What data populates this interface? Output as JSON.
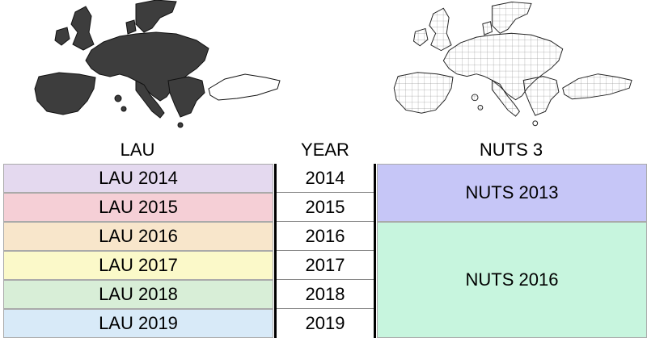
{
  "headers": {
    "lau": "LAU",
    "year": "YEAR",
    "nuts": "NUTS 3"
  },
  "lau_rows": [
    {
      "label": "LAU 2014",
      "color": "#e4d9ef"
    },
    {
      "label": "LAU 2015",
      "color": "#f5cfd6"
    },
    {
      "label": "LAU 2016",
      "color": "#f8e6cb"
    },
    {
      "label": "LAU 2017",
      "color": "#fbf9c9"
    },
    {
      "label": "LAU 2018",
      "color": "#d8eed7"
    },
    {
      "label": "LAU 2019",
      "color": "#d8eaf8"
    }
  ],
  "years": [
    "2014",
    "2015",
    "2016",
    "2017",
    "2018",
    "2019"
  ],
  "nuts_blocks": [
    {
      "label": "NUTS 2013",
      "color": "#c6c6f7",
      "span_rows": 2
    },
    {
      "label": "NUTS 2016",
      "color": "#c7f5de",
      "span_rows": 4
    }
  ],
  "maps": {
    "lau": {
      "fill": "#3d3d3d",
      "stroke": "#111111"
    },
    "nuts": {
      "fill": "#ffffff",
      "stroke": "#222222"
    }
  }
}
